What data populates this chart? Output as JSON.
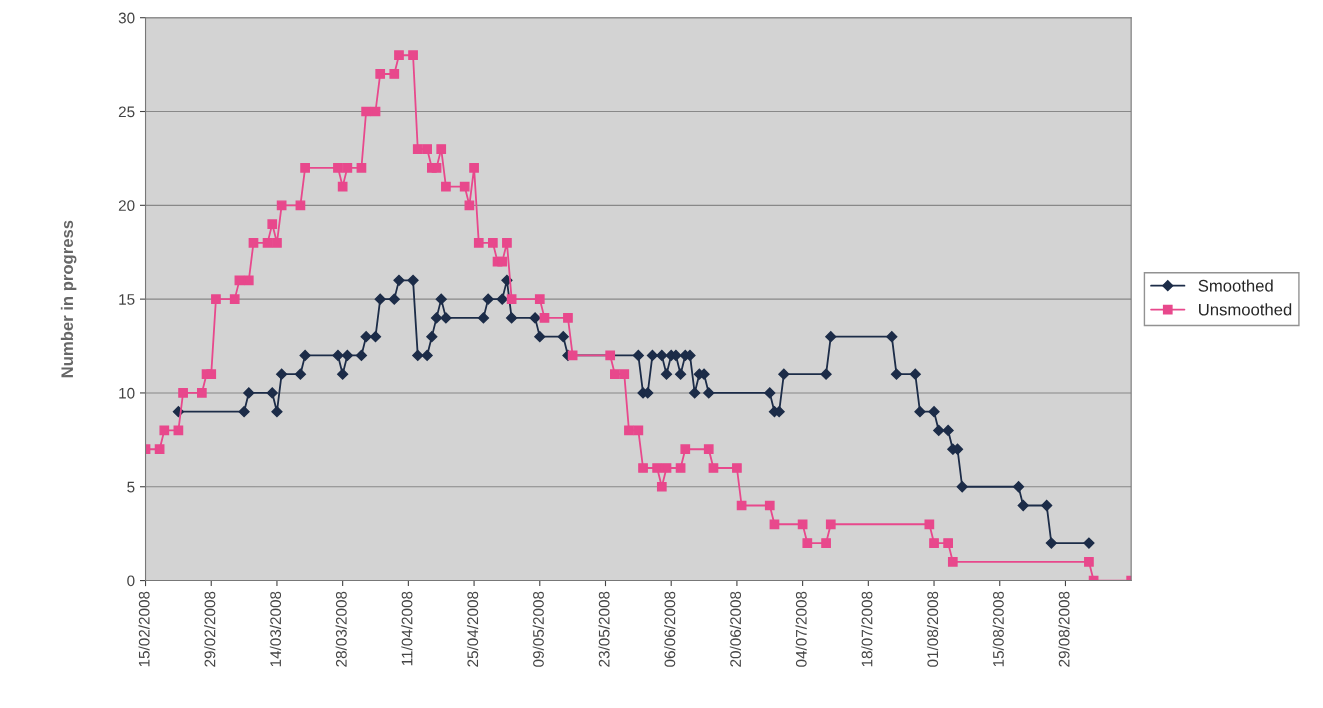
{
  "chart_data": {
    "type": "line",
    "ylabel": "Number in progress",
    "xlim": [
      "2008-02-15",
      "2008-09-12"
    ],
    "ylim": [
      0,
      30
    ],
    "yticks": [
      0,
      5,
      10,
      15,
      20,
      25,
      30
    ],
    "xticks": [
      {
        "value": "2008-02-15",
        "label": "15/02/2008"
      },
      {
        "value": "2008-02-29",
        "label": "29/02/2008"
      },
      {
        "value": "2008-03-14",
        "label": "14/03/2008"
      },
      {
        "value": "2008-03-28",
        "label": "28/03/2008"
      },
      {
        "value": "2008-04-11",
        "label": "11/04/2008"
      },
      {
        "value": "2008-04-25",
        "label": "25/04/2008"
      },
      {
        "value": "2008-05-09",
        "label": "09/05/2008"
      },
      {
        "value": "2008-05-23",
        "label": "23/05/2008"
      },
      {
        "value": "2008-06-06",
        "label": "06/06/2008"
      },
      {
        "value": "2008-06-20",
        "label": "20/06/2008"
      },
      {
        "value": "2008-07-04",
        "label": "04/07/2008"
      },
      {
        "value": "2008-07-18",
        "label": "18/07/2008"
      },
      {
        "value": "2008-08-01",
        "label": "01/08/2008"
      },
      {
        "value": "2008-08-15",
        "label": "15/08/2008"
      },
      {
        "value": "2008-08-29",
        "label": "29/08/2008"
      }
    ],
    "grid": "y",
    "legend": "right",
    "series": [
      {
        "name": "Smoothed",
        "color": "#1c2c48",
        "marker": "diamond",
        "x": [
          "2008-02-22",
          "2008-03-07",
          "2008-03-08",
          "2008-03-13",
          "2008-03-14",
          "2008-03-15",
          "2008-03-19",
          "2008-03-20",
          "2008-03-27",
          "2008-03-28",
          "2008-03-29",
          "2008-04-01",
          "2008-04-02",
          "2008-04-04",
          "2008-04-05",
          "2008-04-08",
          "2008-04-09",
          "2008-04-12",
          "2008-04-13",
          "2008-04-15",
          "2008-04-16",
          "2008-04-17",
          "2008-04-18",
          "2008-04-19",
          "2008-04-27",
          "2008-04-28",
          "2008-05-01",
          "2008-05-02",
          "2008-05-03",
          "2008-05-08",
          "2008-05-09",
          "2008-05-14",
          "2008-05-15",
          "2008-05-30",
          "2008-05-31",
          "2008-06-01",
          "2008-06-02",
          "2008-06-04",
          "2008-06-05",
          "2008-06-06",
          "2008-06-07",
          "2008-06-08",
          "2008-06-09",
          "2008-06-10",
          "2008-06-11",
          "2008-06-12",
          "2008-06-13",
          "2008-06-14",
          "2008-06-27",
          "2008-06-28",
          "2008-06-29",
          "2008-06-30",
          "2008-07-09",
          "2008-07-10",
          "2008-07-23",
          "2008-07-24",
          "2008-07-28",
          "2008-07-29",
          "2008-08-01",
          "2008-08-02",
          "2008-08-04",
          "2008-08-05",
          "2008-08-06",
          "2008-08-07",
          "2008-08-19",
          "2008-08-20",
          "2008-08-25",
          "2008-08-26",
          "2008-09-03"
        ],
        "values": [
          9,
          9,
          10,
          10,
          9,
          11,
          11,
          12,
          12,
          11,
          12,
          12,
          13,
          13,
          15,
          15,
          16,
          16,
          12,
          12,
          13,
          14,
          15,
          14,
          14,
          15,
          15,
          16,
          14,
          14,
          13,
          13,
          12,
          12,
          10,
          10,
          12,
          12,
          11,
          12,
          12,
          11,
          12,
          12,
          10,
          11,
          11,
          10,
          10,
          9,
          9,
          11,
          11,
          13,
          13,
          11,
          11,
          9,
          9,
          8,
          8,
          7,
          7,
          5,
          5,
          4,
          4,
          2,
          2
        ]
      },
      {
        "name": "Unsmoothed",
        "color": "#e8488c",
        "marker": "square",
        "x": [
          "2008-02-15",
          "2008-02-18",
          "2008-02-19",
          "2008-02-22",
          "2008-02-23",
          "2008-02-27",
          "2008-02-28",
          "2008-02-29",
          "2008-03-01",
          "2008-03-05",
          "2008-03-06",
          "2008-03-08",
          "2008-03-09",
          "2008-03-12",
          "2008-03-13",
          "2008-03-14",
          "2008-03-15",
          "2008-03-19",
          "2008-03-20",
          "2008-03-27",
          "2008-03-28",
          "2008-03-29",
          "2008-04-01",
          "2008-04-02",
          "2008-04-04",
          "2008-04-05",
          "2008-04-08",
          "2008-04-09",
          "2008-04-12",
          "2008-04-13",
          "2008-04-15",
          "2008-04-16",
          "2008-04-17",
          "2008-04-18",
          "2008-04-19",
          "2008-04-23",
          "2008-04-24",
          "2008-04-25",
          "2008-04-26",
          "2008-04-29",
          "2008-04-30",
          "2008-05-01",
          "2008-05-02",
          "2008-05-03",
          "2008-05-09",
          "2008-05-10",
          "2008-05-15",
          "2008-05-16",
          "2008-05-24",
          "2008-05-25",
          "2008-05-27",
          "2008-05-28",
          "2008-05-30",
          "2008-05-31",
          "2008-06-03",
          "2008-06-04",
          "2008-06-05",
          "2008-06-08",
          "2008-06-09",
          "2008-06-14",
          "2008-06-15",
          "2008-06-20",
          "2008-06-21",
          "2008-06-27",
          "2008-06-28",
          "2008-07-04",
          "2008-07-05",
          "2008-07-09",
          "2008-07-10",
          "2008-07-31",
          "2008-08-01",
          "2008-08-04",
          "2008-08-05",
          "2008-09-03",
          "2008-09-04",
          "2008-09-12"
        ],
        "values": [
          7,
          7,
          8,
          8,
          10,
          10,
          11,
          11,
          15,
          15,
          16,
          16,
          18,
          18,
          19,
          18,
          20,
          20,
          22,
          22,
          21,
          22,
          22,
          25,
          25,
          27,
          27,
          28,
          28,
          23,
          23,
          22,
          22,
          23,
          21,
          21,
          20,
          22,
          18,
          18,
          17,
          17,
          18,
          15,
          15,
          14,
          14,
          12,
          12,
          11,
          11,
          8,
          8,
          6,
          6,
          5,
          6,
          6,
          7,
          7,
          6,
          6,
          4,
          4,
          3,
          3,
          2,
          2,
          3,
          3,
          2,
          2,
          1,
          1,
          0,
          0
        ]
      }
    ]
  }
}
